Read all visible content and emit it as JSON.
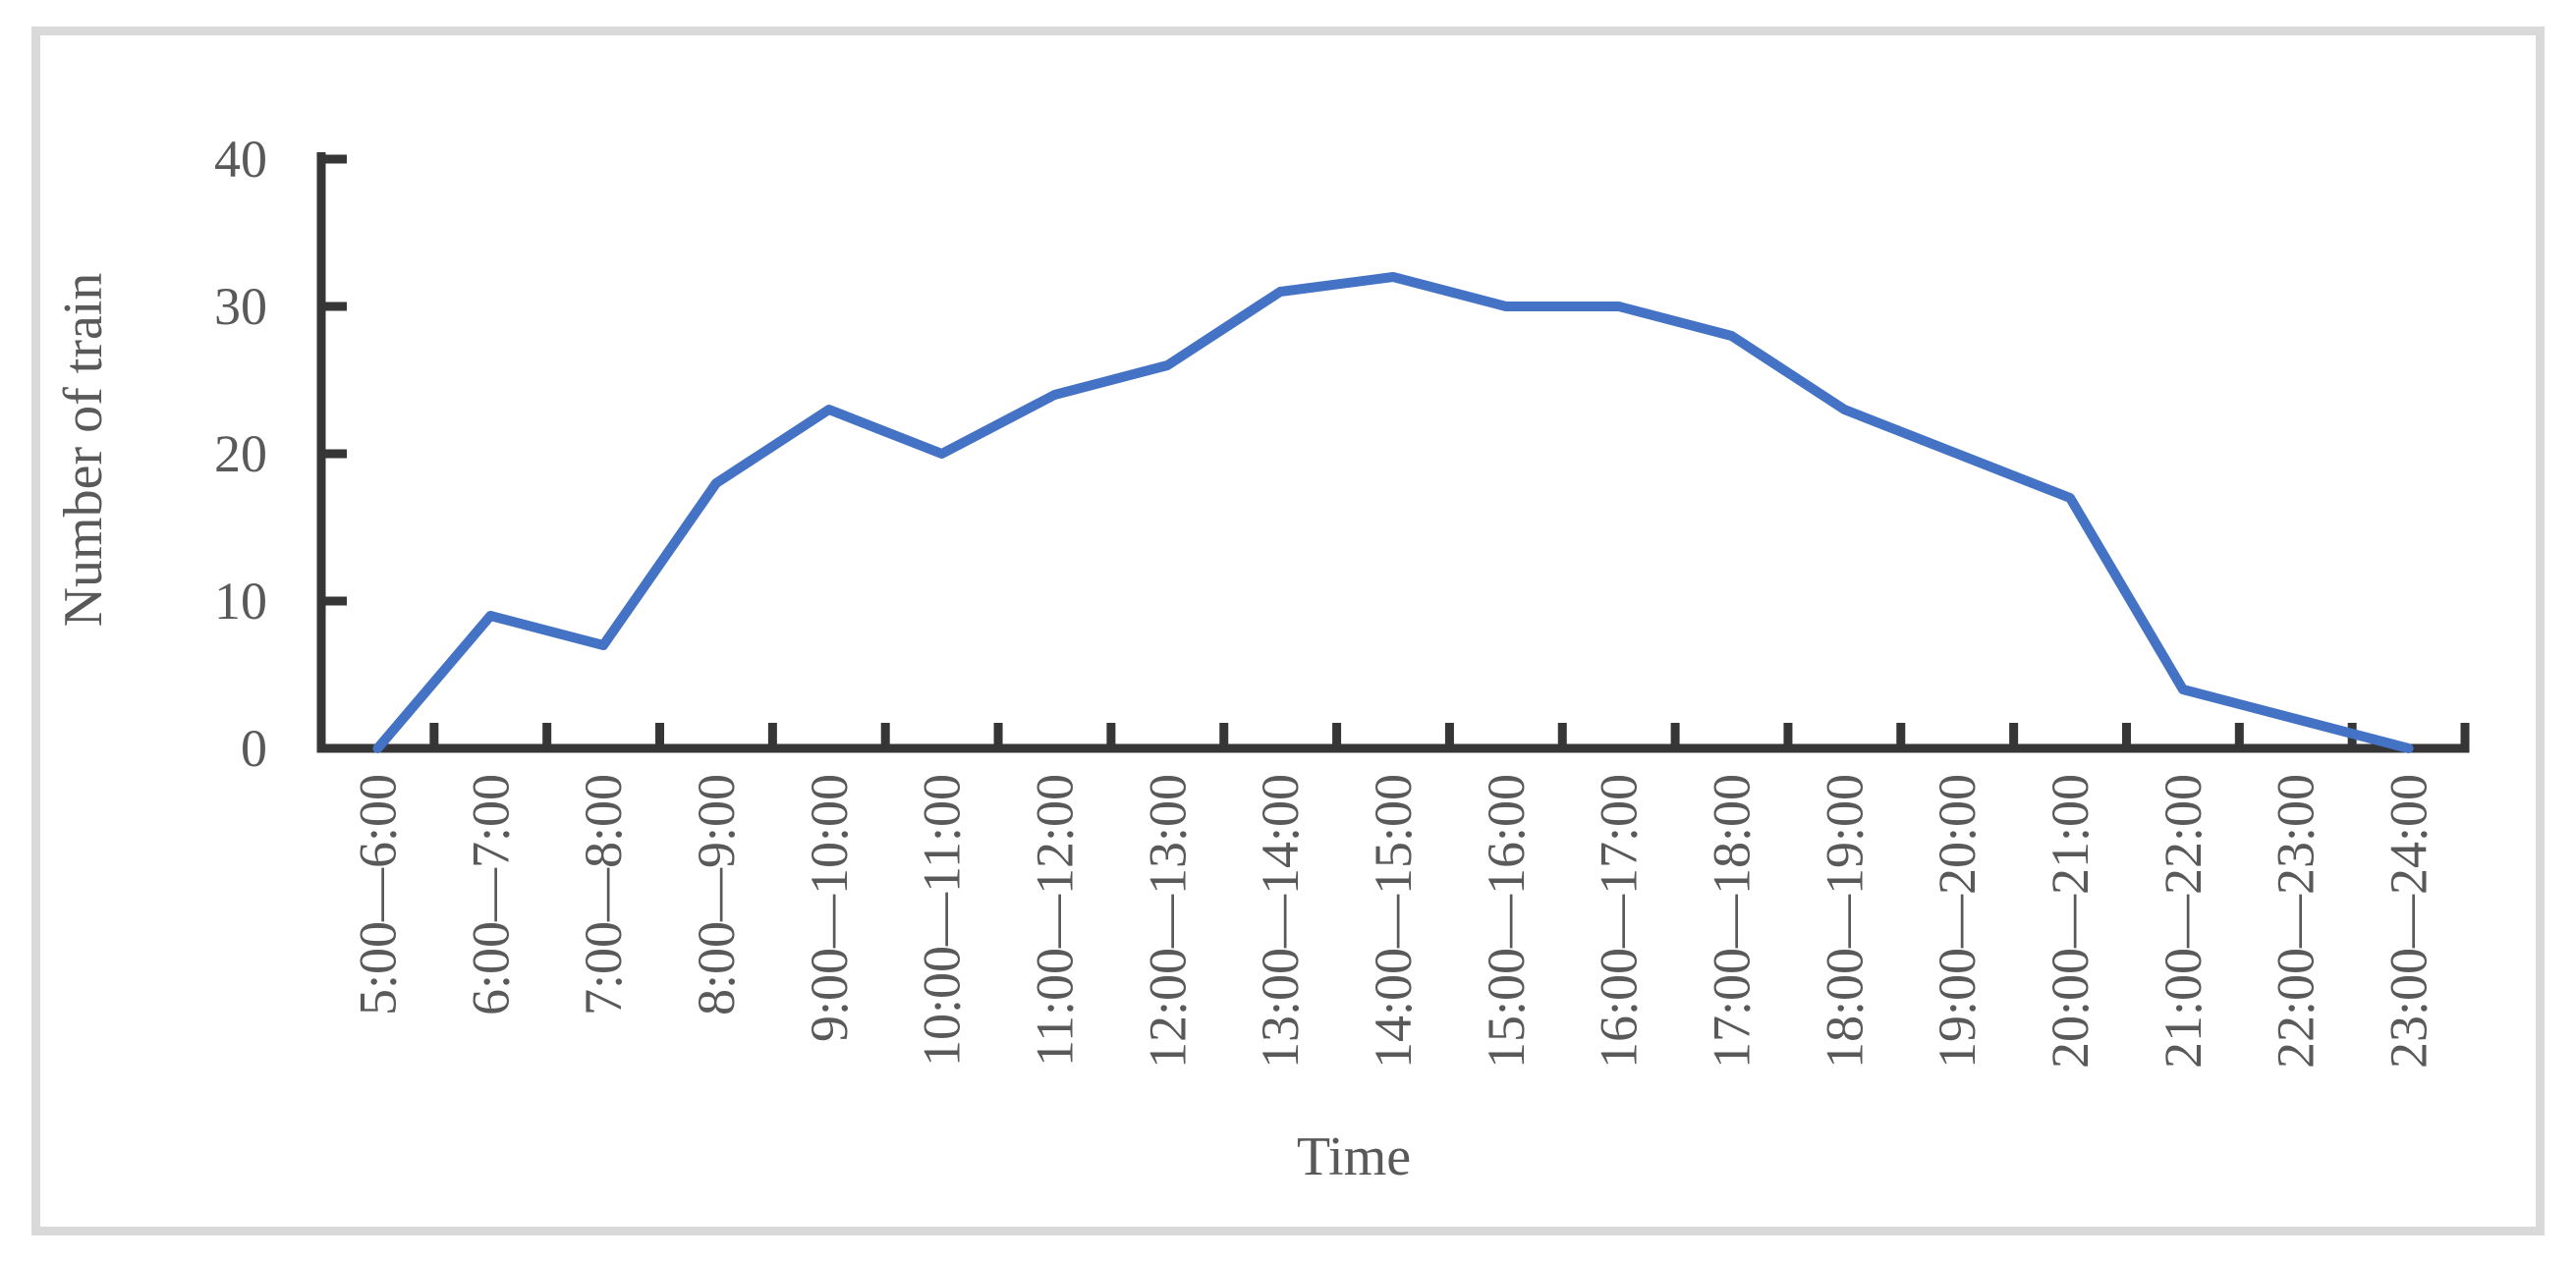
{
  "chart_data": {
    "type": "line",
    "title": "",
    "categories": [
      "5:00—6:00",
      "6:00—7:00",
      "7:00—8:00",
      "8:00—9:00",
      "9:00—10:00",
      "10:00—11:00",
      "11:00—12:00",
      "12:00—13:00",
      "13:00—14:00",
      "14:00—15:00",
      "15:00—16:00",
      "16:00—17:00",
      "17:00—18:00",
      "18:00—19:00",
      "19:00—20:00",
      "20:00—21:00",
      "21:00—22:00",
      "22:00—23:00",
      "23:00—24:00"
    ],
    "series": [
      {
        "name": "Number of train",
        "values": [
          0,
          9,
          7,
          18,
          23,
          20,
          24,
          26,
          31,
          32,
          30,
          30,
          28,
          23,
          20,
          17,
          4,
          2,
          0
        ]
      }
    ],
    "xlabel": "Time",
    "ylabel": "Number of train",
    "ylim": [
      0,
      40
    ],
    "yticks": [
      0,
      10,
      20,
      30,
      40
    ],
    "grid": "off",
    "legend": "none",
    "line_color": "#4472C4",
    "axis_color": "#363636",
    "label_color": "#595959"
  },
  "frame": {
    "border_color": "#d9d9d9",
    "background": "#ffffff"
  }
}
